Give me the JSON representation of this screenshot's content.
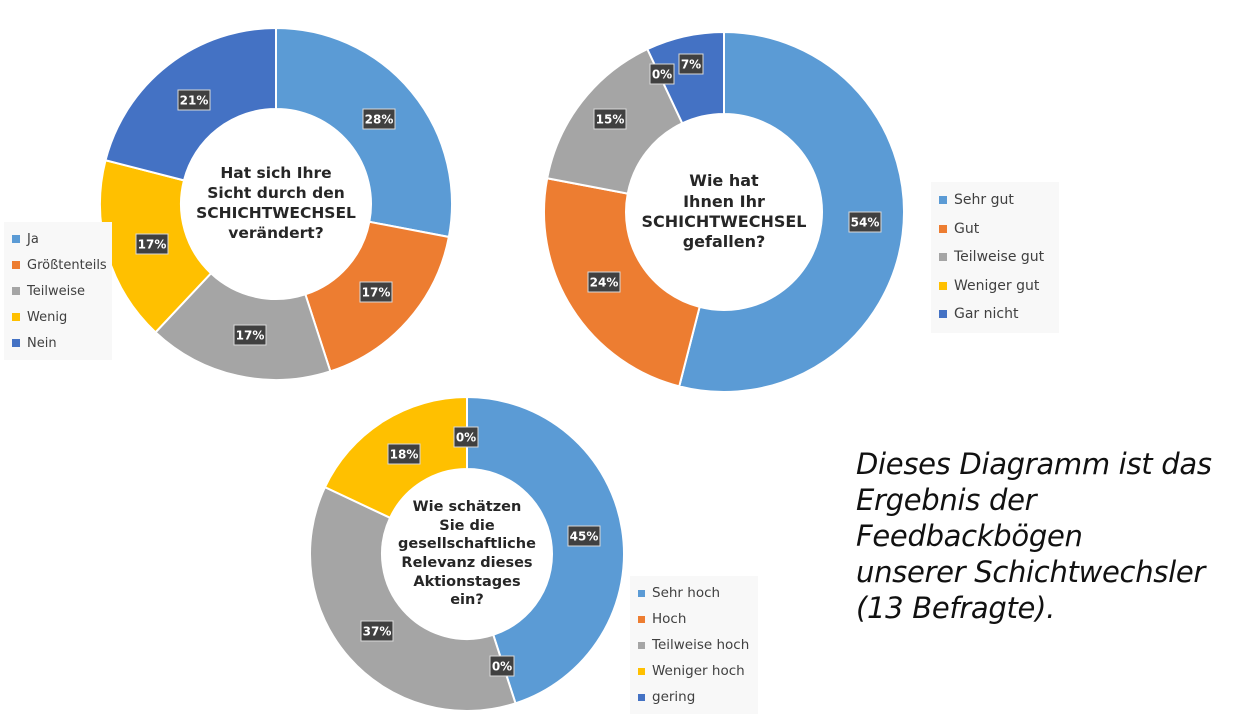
{
  "chart_data": [
    {
      "type": "pie",
      "title": "Hat sich Ihre\nSicht durch den\nSCHICHTWECHSEL\nverändert?",
      "categories": [
        "Ja",
        "Größtenteils",
        "Teilweise",
        "Wenig",
        "Nein"
      ],
      "values": [
        28,
        17,
        17,
        17,
        21
      ],
      "labels": [
        "28%",
        "17%",
        "17%",
        "17%",
        "21%"
      ],
      "colors": [
        "#5b9bd5",
        "#ed7d31",
        "#a5a5a5",
        "#ffc000",
        "#4472c4"
      ],
      "legend": "left"
    },
    {
      "type": "pie",
      "title": "Wie hat\nIhnen Ihr\nSCHICHTWECHSEL\ngefallen?",
      "categories": [
        "Sehr gut",
        "Gut",
        "Teilweise gut",
        "Weniger gut",
        "Gar nicht"
      ],
      "values": [
        54,
        24,
        15,
        0,
        7
      ],
      "labels": [
        "54%",
        "24%",
        "15%",
        "0%",
        "7%"
      ],
      "colors": [
        "#5b9bd5",
        "#ed7d31",
        "#a5a5a5",
        "#ffc000",
        "#4472c4"
      ],
      "legend": "right"
    },
    {
      "type": "pie",
      "title": "Wie schätzen\nSie die\ngesellschaftliche\nRelevanz dieses\nAktionstages\nein?",
      "categories": [
        "Sehr hoch",
        "Hoch",
        "Teilweise hoch",
        "Weniger hoch",
        "gering"
      ],
      "values": [
        45,
        0,
        37,
        18,
        0
      ],
      "labels": [
        "45%",
        "0%",
        "37%",
        "18%",
        "0%"
      ],
      "colors": [
        "#5b9bd5",
        "#ed7d31",
        "#a5a5a5",
        "#ffc000",
        "#4472c4"
      ],
      "legend": "right"
    }
  ],
  "note": "Dieses Diagramm ist das\nErgebnis der Feedbackbögen\nunserer Schichtwechsler\n(13 Befragte)."
}
